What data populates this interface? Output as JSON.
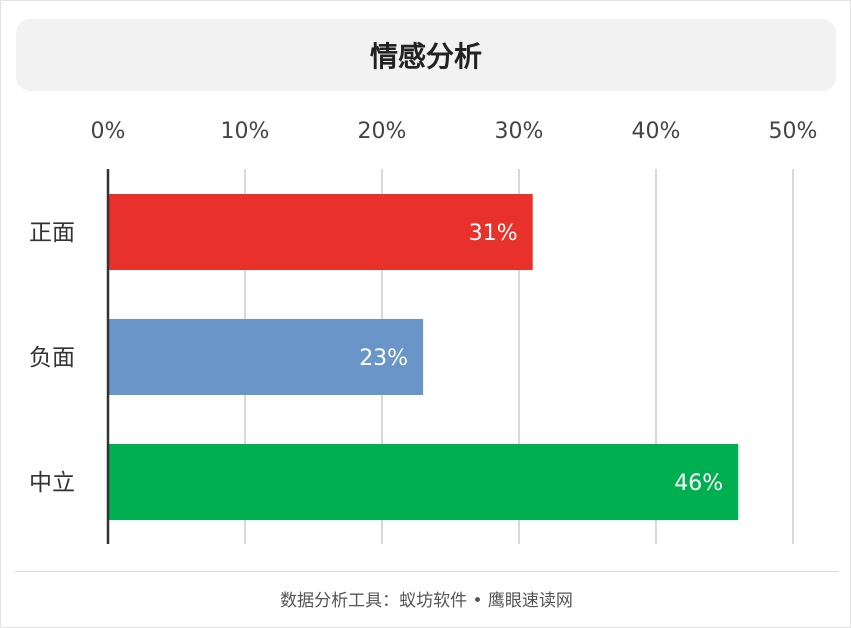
{
  "chart_data": {
    "type": "bar",
    "orientation": "horizontal",
    "title": "情感分析",
    "categories": [
      "正面",
      "负面",
      "中立"
    ],
    "values": [
      31,
      23,
      46
    ],
    "data_labels": [
      "31%",
      "23%",
      "46%"
    ],
    "colors": [
      "#e8312a",
      "#6995c8",
      "#00b050"
    ],
    "xlim": [
      0,
      50
    ],
    "xticks": [
      0,
      10,
      20,
      30,
      40,
      50
    ],
    "xtick_labels": [
      "0%",
      "10%",
      "20%",
      "30%",
      "40%",
      "50%"
    ],
    "grid": true,
    "axis_position": "top"
  },
  "footer": {
    "text": "数据分析工具：蚁坊软件 • 鹰眼速读网"
  }
}
